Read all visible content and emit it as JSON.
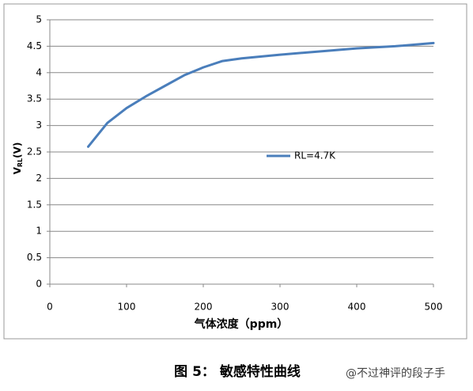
{
  "chart_data": {
    "type": "line",
    "y_label": {
      "main": "V",
      "sub": "RL",
      "unit": "(V)"
    },
    "x_label": "气体浓度（ppm）",
    "caption": "图 5：  敏感特性曲线",
    "watermark": "@不过神评的段子手",
    "x": [
      50,
      75,
      100,
      125,
      150,
      175,
      200,
      225,
      250,
      300,
      350,
      400,
      450,
      500
    ],
    "series": [
      {
        "name": "RL=4.7K",
        "color": "#4a7ebb",
        "values": [
          2.6,
          3.05,
          3.33,
          3.55,
          3.75,
          3.95,
          4.1,
          4.22,
          4.27,
          4.34,
          4.4,
          4.46,
          4.5,
          4.56
        ]
      }
    ],
    "xlim": [
      0,
      500
    ],
    "xticks": [
      0,
      100,
      200,
      300,
      400,
      500
    ],
    "ylim": [
      0,
      5
    ],
    "yticks": [
      0,
      0.5,
      1,
      1.5,
      2,
      2.5,
      3,
      3.5,
      4,
      4.5,
      5
    ],
    "grid": true
  }
}
